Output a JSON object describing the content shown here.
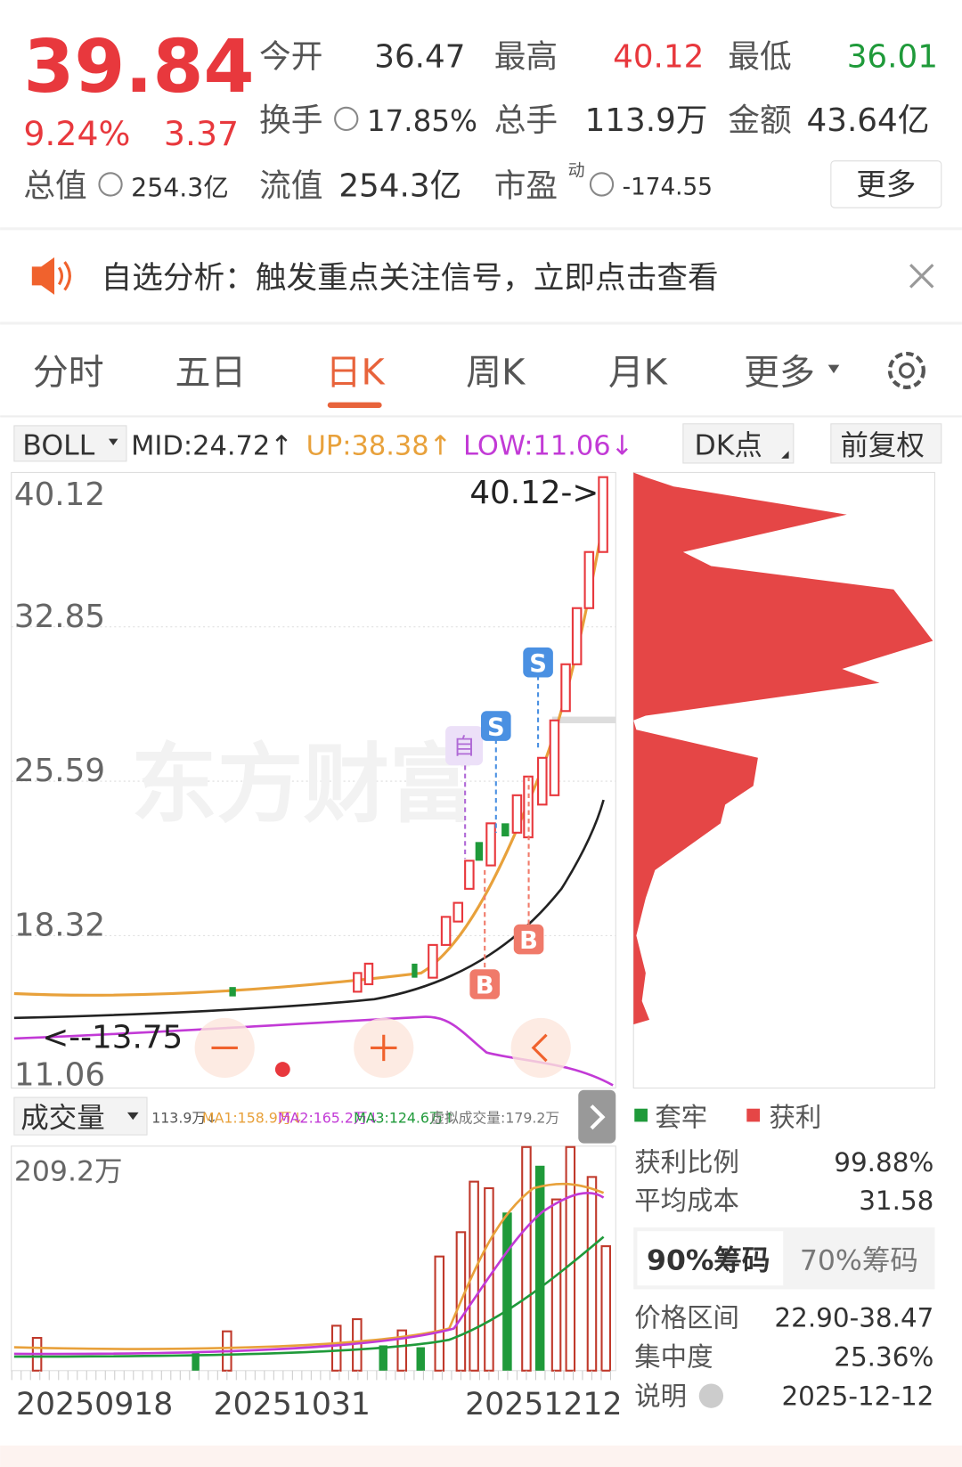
{
  "quote": {
    "price": "39.84",
    "change_pct": "9.24%",
    "change": "3.37",
    "open": {
      "label": "今开",
      "value": "36.47"
    },
    "high": {
      "label": "最高",
      "value": "40.12"
    },
    "low": {
      "label": "最低",
      "value": "36.01"
    },
    "turnover": {
      "label": "换手",
      "value": "17.85%"
    },
    "volume": {
      "label": "总手",
      "value": "113.9万"
    },
    "amount": {
      "label": "金额",
      "value": "43.64亿"
    },
    "market_cap": {
      "label": "总值",
      "value": "254.3亿"
    },
    "float_cap": {
      "label": "流值",
      "value": "254.3亿"
    },
    "pe": {
      "label": "市盈",
      "sup": "动",
      "value": "-174.55"
    },
    "more": "更多"
  },
  "banner": {
    "text": "自选分析：触发重点关注信号，立即点击查看"
  },
  "tabs": [
    "分时",
    "五日",
    "日K",
    "周K",
    "月K",
    "更多"
  ],
  "indicator": {
    "name": "BOLL",
    "mid": "MID:24.72↑",
    "up": "UP:38.38↑",
    "low": "LOW:11.06↓",
    "dk": "DK点",
    "adjust": "前复权"
  },
  "price_chart": {
    "axis_labels": [
      "40.12",
      "32.85",
      "25.59",
      "18.32",
      "11.06"
    ],
    "high_marker": "40.12->",
    "low_marker": "<--13.75",
    "watermark": "东方财富",
    "signals": [
      "自",
      "S",
      "S",
      "B",
      "B"
    ]
  },
  "volume_chart": {
    "selector": "成交量",
    "stats": [
      "113.9万↓",
      "MA1:158.9万↓",
      "MA2:165.2万↓",
      "MA3:124.6万↑",
      "虚拟成交量:179.2万"
    ],
    "axis_label": "209.2万",
    "dates": [
      "20250918",
      "20251031",
      "20251212"
    ]
  },
  "chips": {
    "legend": [
      "套牢",
      "获利"
    ],
    "rows": [
      {
        "label": "获利比例",
        "value": "99.88%"
      },
      {
        "label": "平均成本",
        "value": "31.58"
      }
    ],
    "tabs": [
      "90%筹码",
      "70%筹码"
    ],
    "details": [
      {
        "label": "价格区间",
        "value": "22.90-38.47"
      },
      {
        "label": "集中度",
        "value": "25.36%"
      },
      {
        "label": "说明",
        "value": "2025-12-12"
      }
    ]
  }
}
